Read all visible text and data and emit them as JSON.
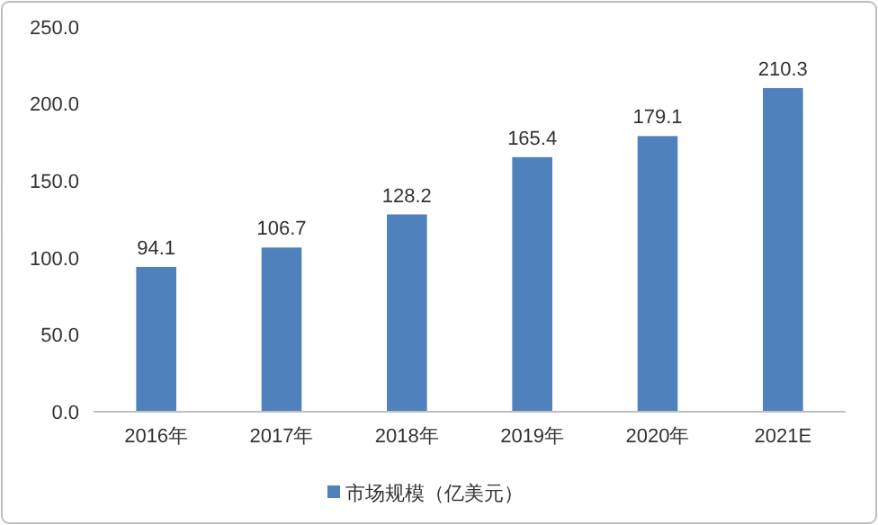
{
  "chart_data": {
    "type": "bar",
    "categories": [
      "2016年",
      "2017年",
      "2018年",
      "2019年",
      "2020年",
      "2021E"
    ],
    "series": [
      {
        "name": "市场规模（亿美元）",
        "color": "#4f81bd",
        "values": [
          94.1,
          106.7,
          128.2,
          165.4,
          179.1,
          210.3
        ]
      }
    ],
    "ylim": [
      0,
      250
    ],
    "yticks": [
      {
        "value": 0,
        "label": "0.0"
      },
      {
        "value": 50,
        "label": "50.0"
      },
      {
        "value": 100,
        "label": "100.0"
      },
      {
        "value": 150,
        "label": "150.0"
      },
      {
        "value": 200,
        "label": "200.0"
      },
      {
        "value": 250,
        "label": "250.0"
      }
    ],
    "data_labels": true,
    "legend": "bottom",
    "grid": false
  }
}
